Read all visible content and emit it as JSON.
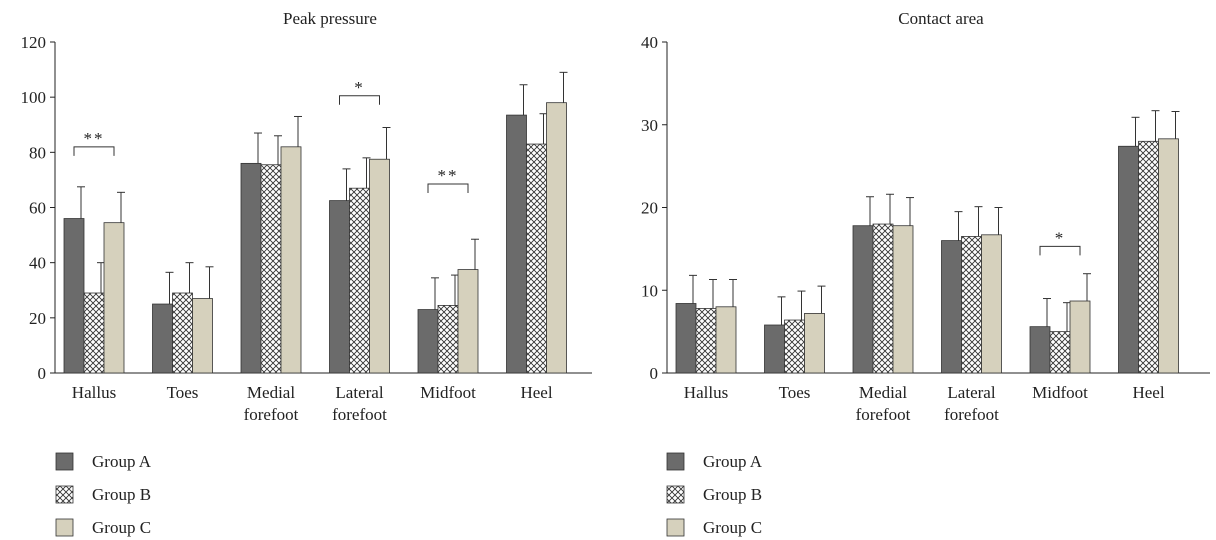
{
  "chart_data": [
    {
      "type": "bar",
      "title": "Peak pressure",
      "xlabel": "",
      "ylabel": "",
      "ylim": [
        0,
        120
      ],
      "yticks": [
        0,
        20,
        40,
        60,
        80,
        100,
        120
      ],
      "categories": [
        [
          "Hallus"
        ],
        [
          "Toes"
        ],
        [
          "Medial",
          "forefoot"
        ],
        [
          "Lateral",
          "forefoot"
        ],
        [
          "Midfoot"
        ],
        [
          "Heel"
        ]
      ],
      "series": [
        {
          "name": "Group A",
          "values": [
            56,
            25,
            76,
            62.5,
            23,
            93.5
          ],
          "errors": [
            11.5,
            11.5,
            11,
            11.5,
            11.5,
            11
          ],
          "color": "#6b6b6b",
          "pattern": "solid"
        },
        {
          "name": "Group B",
          "values": [
            29,
            29,
            75.5,
            67,
            24.5,
            83
          ],
          "errors": [
            11,
            11,
            10.5,
            11,
            11,
            11
          ],
          "color": "#ffffff",
          "pattern": "crosshatch"
        },
        {
          "name": "Group C",
          "values": [
            54.5,
            27,
            82,
            77.5,
            37.5,
            98
          ],
          "errors": [
            11,
            11.5,
            11,
            11.5,
            11,
            11
          ],
          "color": "#d6d1bd",
          "pattern": "solid"
        }
      ],
      "significance": [
        {
          "category": 0,
          "from": "Group A",
          "to": "Group C",
          "label": "**",
          "at": 82
        },
        {
          "category": 3,
          "from": "Group A",
          "to": "Group C",
          "label": "*",
          "at": 100.5
        },
        {
          "category": 4,
          "from": "Group A",
          "to": "Group C",
          "label": "**",
          "at": 68.5
        }
      ],
      "legend": [
        "Group A",
        "Group B",
        "Group C"
      ],
      "legend_position": "bottom-left",
      "grid": false
    },
    {
      "type": "bar",
      "title": "Contact area",
      "xlabel": "",
      "ylabel": "",
      "ylim": [
        0,
        40
      ],
      "yticks": [
        0,
        10,
        20,
        30,
        40
      ],
      "categories": [
        [
          "Hallus"
        ],
        [
          "Toes"
        ],
        [
          "Medial",
          "forefoot"
        ],
        [
          "Lateral",
          "forefoot"
        ],
        [
          "Midfoot"
        ],
        [
          "Heel"
        ]
      ],
      "series": [
        {
          "name": "Group A",
          "values": [
            8.4,
            5.8,
            17.8,
            16,
            5.6,
            27.4
          ],
          "errors": [
            3.4,
            3.4,
            3.5,
            3.5,
            3.4,
            3.5
          ],
          "color": "#6b6b6b",
          "pattern": "solid"
        },
        {
          "name": "Group B",
          "values": [
            7.8,
            6.4,
            18,
            16.5,
            5,
            28
          ],
          "errors": [
            3.5,
            3.5,
            3.6,
            3.6,
            3.5,
            3.7
          ],
          "color": "#ffffff",
          "pattern": "crosshatch"
        },
        {
          "name": "Group C",
          "values": [
            8,
            7.2,
            17.8,
            16.7,
            8.7,
            28.3
          ],
          "errors": [
            3.3,
            3.3,
            3.4,
            3.3,
            3.3,
            3.3
          ],
          "color": "#d6d1bd",
          "pattern": "solid"
        }
      ],
      "significance": [
        {
          "category": 4,
          "from": "Group A",
          "to": "Group C",
          "label": "*",
          "at": 15.3
        }
      ],
      "legend": [
        "Group A",
        "Group B",
        "Group C"
      ],
      "legend_position": "bottom-left",
      "grid": false
    }
  ]
}
